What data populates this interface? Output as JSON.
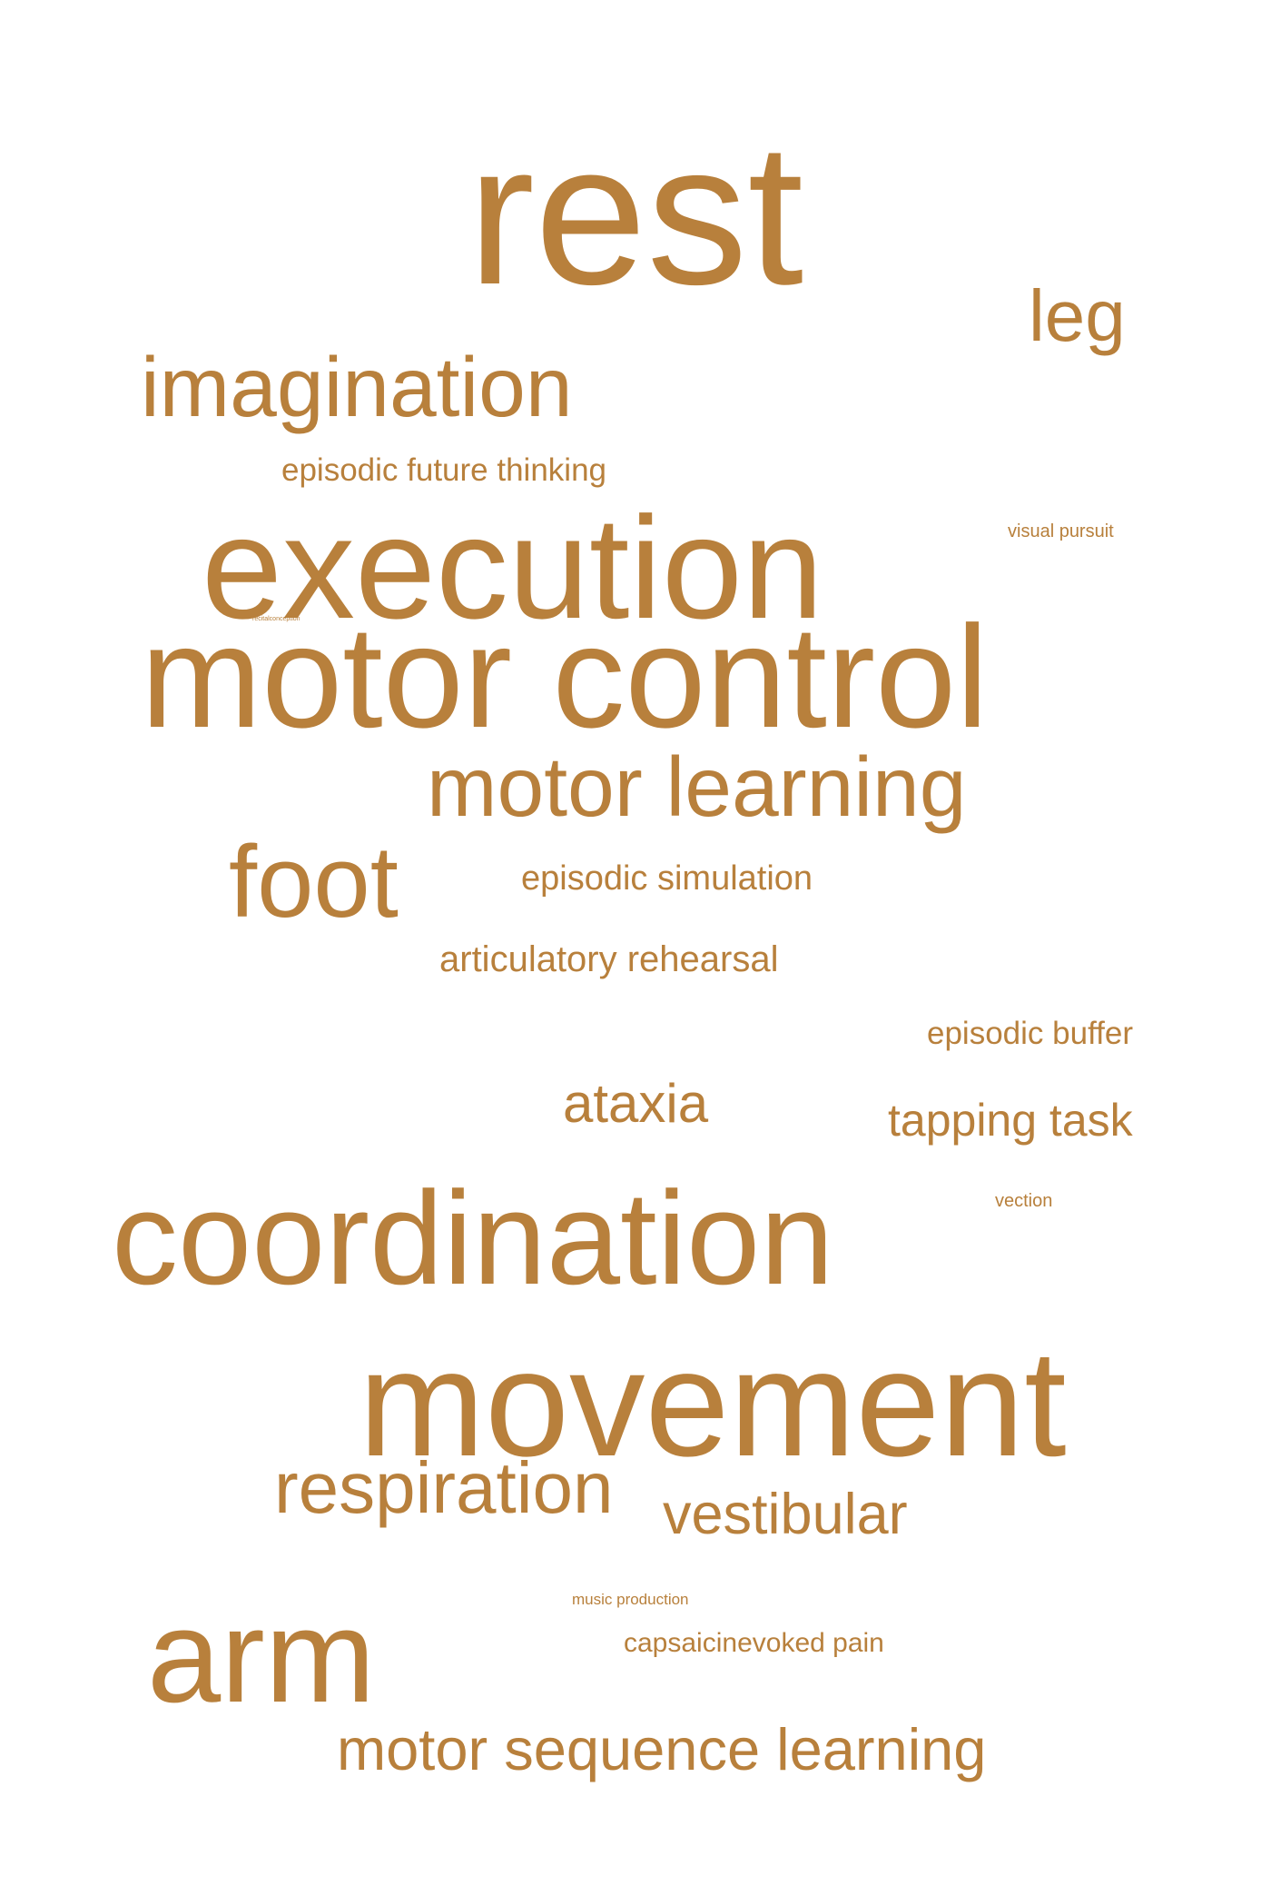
{
  "cloud": {
    "color": "#b8803c",
    "words": {
      "rest": "rest",
      "leg": "leg",
      "imagination": "imagination",
      "episodic_future_thinking": "episodic future thinking",
      "execution": "execution",
      "visual_pursuit": "visual pursuit",
      "recitalconception": "recitalconception",
      "motor_control": "motor control",
      "motor_learning": "motor learning",
      "foot": "foot",
      "episodic_simulation": "episodic simulation",
      "articulatory_rehearsal": "articulatory rehearsal",
      "episodic_buffer": "episodic buffer",
      "ataxia": "ataxia",
      "tapping_task": "tapping task",
      "vection": "vection",
      "coordination": "coordination",
      "movement": "movement",
      "respiration": "respiration",
      "vestibular": "vestibular",
      "music_production": "music production",
      "capsaicinevoked_pain": "capsaicinevoked pain",
      "arm": "arm",
      "motor_sequence_learning": "motor sequence learning"
    }
  }
}
